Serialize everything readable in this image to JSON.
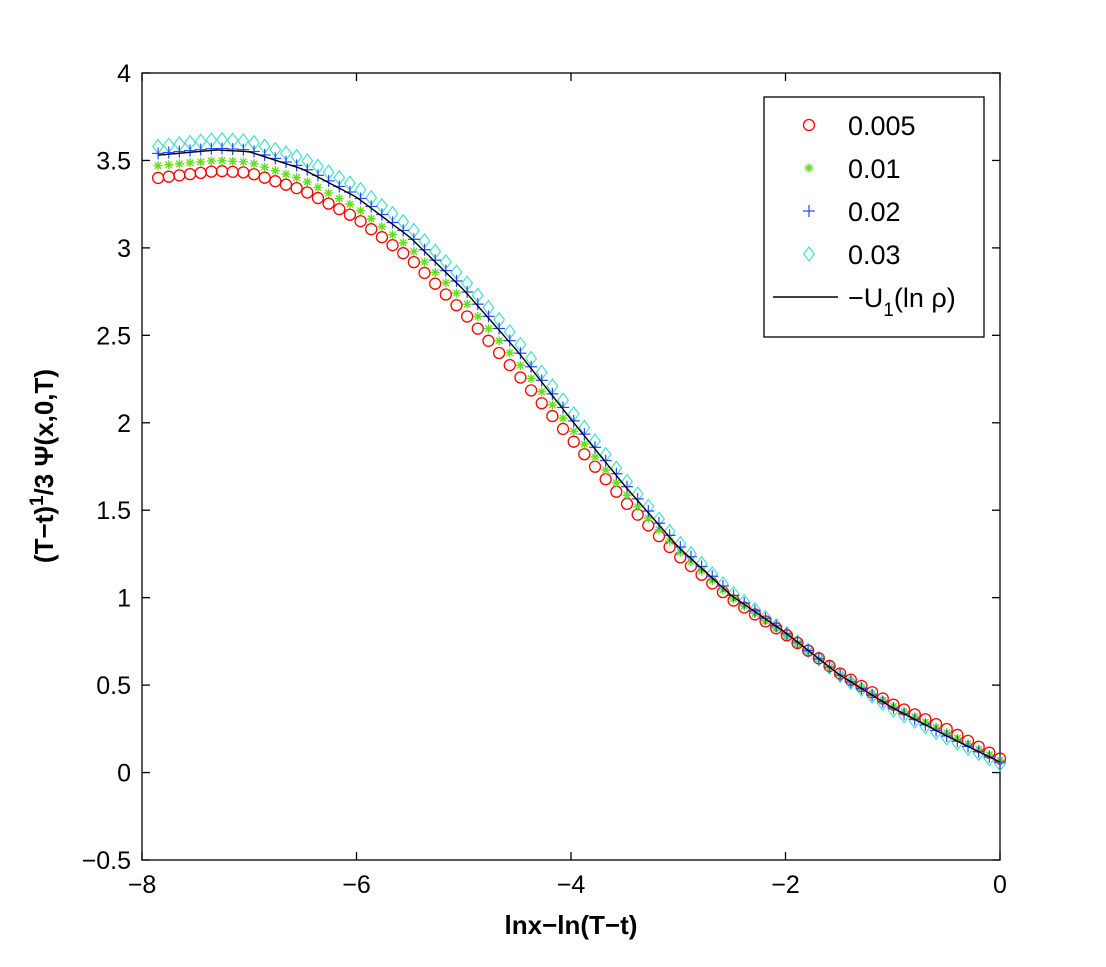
{
  "chart_data": {
    "type": "scatter",
    "title": "",
    "xlabel": "lnx−ln(T−t)",
    "ylabel": {
      "prefix": "(T−t)",
      "sup": "1",
      "middle": "/3 Ψ(x,0,T)"
    },
    "xlim": [
      -8,
      0
    ],
    "ylim": [
      -0.5,
      4
    ],
    "xticks": [
      -8,
      -6,
      -4,
      -2,
      0
    ],
    "xtick_labels": [
      "−8",
      "−6",
      "−4",
      "−2",
      "0"
    ],
    "yticks": [
      -0.5,
      0,
      0.5,
      1,
      1.5,
      2,
      2.5,
      3,
      3.5,
      4
    ],
    "ytick_labels": [
      "−0.5",
      "0",
      "0.5",
      "1",
      "1.5",
      "2",
      "2.5",
      "3",
      "3.5",
      "4"
    ],
    "grid": false,
    "legend_position": "top-right",
    "x_range_points": {
      "start": -7.85,
      "end": 0,
      "count": 80
    },
    "series": [
      {
        "name": "0.005",
        "marker": "circle",
        "color": "#ff0000",
        "key_points": [
          [
            -7.85,
            3.4
          ],
          [
            -7.3,
            3.44
          ],
          [
            -7.0,
            3.43
          ],
          [
            -6.5,
            3.33
          ],
          [
            -6.0,
            3.17
          ],
          [
            -5.5,
            2.94
          ],
          [
            -5.0,
            2.63
          ],
          [
            -4.5,
            2.28
          ],
          [
            -4.0,
            1.91
          ],
          [
            -3.5,
            1.55
          ],
          [
            -3.0,
            1.24
          ],
          [
            -2.5,
            0.99
          ],
          [
            -2.0,
            0.79
          ],
          [
            -1.5,
            0.57
          ],
          [
            -1.0,
            0.39
          ],
          [
            -0.5,
            0.25
          ],
          [
            0.0,
            0.08
          ]
        ]
      },
      {
        "name": "0.01",
        "marker": "asterisk",
        "color": "#66dd22",
        "key_points": [
          [
            -7.85,
            3.47
          ],
          [
            -7.3,
            3.5
          ],
          [
            -7.0,
            3.49
          ],
          [
            -6.5,
            3.39
          ],
          [
            -6.0,
            3.23
          ],
          [
            -5.5,
            3.0
          ],
          [
            -5.0,
            2.7
          ],
          [
            -4.5,
            2.35
          ],
          [
            -4.0,
            1.97
          ],
          [
            -3.5,
            1.6
          ],
          [
            -3.0,
            1.27
          ],
          [
            -2.5,
            1.0
          ],
          [
            -2.0,
            0.79
          ],
          [
            -1.5,
            0.56
          ],
          [
            -1.0,
            0.38
          ],
          [
            -0.5,
            0.23
          ],
          [
            0.0,
            0.07
          ]
        ]
      },
      {
        "name": "0.02",
        "marker": "plus",
        "color": "#2a44ff",
        "key_points": [
          [
            -7.85,
            3.54
          ],
          [
            -7.3,
            3.57
          ],
          [
            -7.0,
            3.56
          ],
          [
            -6.5,
            3.46
          ],
          [
            -6.0,
            3.3
          ],
          [
            -5.5,
            3.07
          ],
          [
            -5.0,
            2.77
          ],
          [
            -4.5,
            2.42
          ],
          [
            -4.0,
            2.03
          ],
          [
            -3.5,
            1.65
          ],
          [
            -3.0,
            1.3
          ],
          [
            -2.5,
            1.02
          ],
          [
            -2.0,
            0.8
          ],
          [
            -1.5,
            0.56
          ],
          [
            -1.0,
            0.37
          ],
          [
            -0.5,
            0.21
          ],
          [
            0.0,
            0.06
          ]
        ]
      },
      {
        "name": "0.03",
        "marker": "diamond",
        "color": "#40e0d0",
        "key_points": [
          [
            -7.85,
            3.58
          ],
          [
            -7.3,
            3.62
          ],
          [
            -7.0,
            3.61
          ],
          [
            -6.5,
            3.51
          ],
          [
            -6.0,
            3.35
          ],
          [
            -5.5,
            3.12
          ],
          [
            -5.0,
            2.82
          ],
          [
            -4.5,
            2.47
          ],
          [
            -4.0,
            2.07
          ],
          [
            -3.5,
            1.68
          ],
          [
            -3.0,
            1.32
          ],
          [
            -2.5,
            1.03
          ],
          [
            -2.0,
            0.8
          ],
          [
            -1.5,
            0.56
          ],
          [
            -1.0,
            0.36
          ],
          [
            -0.5,
            0.2
          ],
          [
            0.0,
            0.05
          ]
        ]
      },
      {
        "name": "−U",
        "name_sub": "1",
        "name_suffix": "(ln ρ)",
        "marker": "line",
        "color": "#000000",
        "key_points": [
          [
            -7.85,
            3.53
          ],
          [
            -7.3,
            3.56
          ],
          [
            -7.0,
            3.55
          ],
          [
            -6.5,
            3.45
          ],
          [
            -6.0,
            3.29
          ],
          [
            -5.5,
            3.06
          ],
          [
            -5.0,
            2.76
          ],
          [
            -4.5,
            2.41
          ],
          [
            -4.0,
            2.02
          ],
          [
            -3.5,
            1.64
          ],
          [
            -3.0,
            1.29
          ],
          [
            -2.5,
            1.01
          ],
          [
            -2.0,
            0.8
          ],
          [
            -1.5,
            0.56
          ],
          [
            -1.0,
            0.37
          ],
          [
            -0.5,
            0.21
          ],
          [
            0.0,
            0.06
          ]
        ]
      }
    ]
  }
}
